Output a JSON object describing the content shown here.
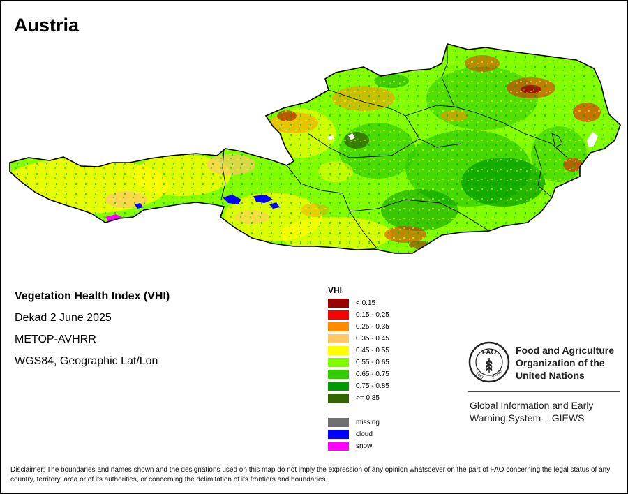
{
  "map": {
    "title": "Austria",
    "colors": {
      "lt015": "#990000",
      "c015_025": "#ff0000",
      "c025_035": "#ff8c00",
      "c035_045": "#ffc966",
      "c045_055": "#ffff00",
      "c055_065": "#80ff00",
      "c065_075": "#33cc00",
      "c075_085": "#009900",
      "ge085": "#336600",
      "missing": "#707070",
      "cloud": "#0000ff",
      "snow": "#ff00ff"
    }
  },
  "info": {
    "index_name": "Vegetation Health Index (VHI)",
    "period": "Dekad 2 June 2025",
    "sensor": "METOP-AVHRR",
    "projection": "WGS84, Geographic Lat/Lon"
  },
  "legend": {
    "title": "VHI",
    "classes": [
      {
        "label": "< 0.15",
        "color": "#990000"
      },
      {
        "label": "0.15 - 0.25",
        "color": "#ff0000"
      },
      {
        "label": "0.25 - 0.35",
        "color": "#ff8c00"
      },
      {
        "label": "0.35 - 0.45",
        "color": "#ffc966"
      },
      {
        "label": "0.45 - 0.55",
        "color": "#ffff00"
      },
      {
        "label": "0.55 - 0.65",
        "color": "#80ff00"
      },
      {
        "label": "0.65 - 0.75",
        "color": "#33cc00"
      },
      {
        "label": "0.75 - 0.85",
        "color": "#009900"
      },
      {
        "label": ">= 0.85",
        "color": "#336600"
      }
    ],
    "other": [
      {
        "label": "missing",
        "color": "#707070"
      },
      {
        "label": "cloud",
        "color": "#0000ff"
      },
      {
        "label": "snow",
        "color": "#ff00ff"
      }
    ]
  },
  "fao": {
    "logo_text": "FAO",
    "motto_left": "FIAT",
    "motto_right": "PANIS",
    "name_lines": [
      "Food and Agriculture",
      "Organization of the",
      "United Nations"
    ],
    "giews_lines": [
      "Global Information and Early",
      "Warning System – GIEWS"
    ]
  },
  "disclaimer": "Disclaimer: The boundaries and names shown and the designations used on this map do not imply the expression of any opinion whatsoever on the part of FAO concerning the legal status of any country, territory, area or of its authorities, or concerning the delimitation of its frontiers and boundaries."
}
